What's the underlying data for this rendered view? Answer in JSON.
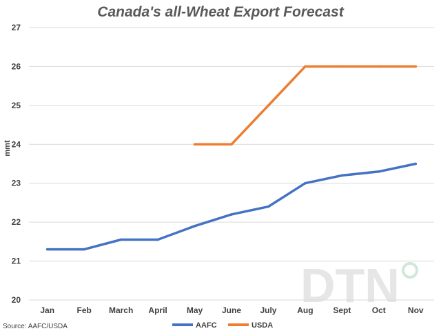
{
  "chart_data": {
    "type": "line",
    "title": "Canada's all-Wheat Export Forecast",
    "xlabel": "",
    "ylabel": "mmt",
    "categories": [
      "Jan",
      "Feb",
      "March",
      "April",
      "May",
      "June",
      "July",
      "Aug",
      "Sept",
      "Oct",
      "Nov"
    ],
    "ylim": [
      20,
      27
    ],
    "yticks": [
      20,
      21,
      22,
      23,
      24,
      25,
      26,
      27
    ],
    "grid": true,
    "legend_position": "bottom",
    "series": [
      {
        "name": "AAFC",
        "color": "#4472c4",
        "values": [
          21.3,
          21.3,
          21.55,
          21.55,
          21.9,
          22.2,
          22.4,
          23.0,
          23.2,
          23.3,
          23.5
        ]
      },
      {
        "name": "USDA",
        "color": "#ed7d31",
        "values": [
          null,
          null,
          null,
          null,
          24.0,
          24.0,
          25.0,
          26.0,
          26.0,
          26.0,
          26.0
        ]
      }
    ],
    "source": "Source: AAFC/USDA",
    "watermark": "DTN"
  }
}
